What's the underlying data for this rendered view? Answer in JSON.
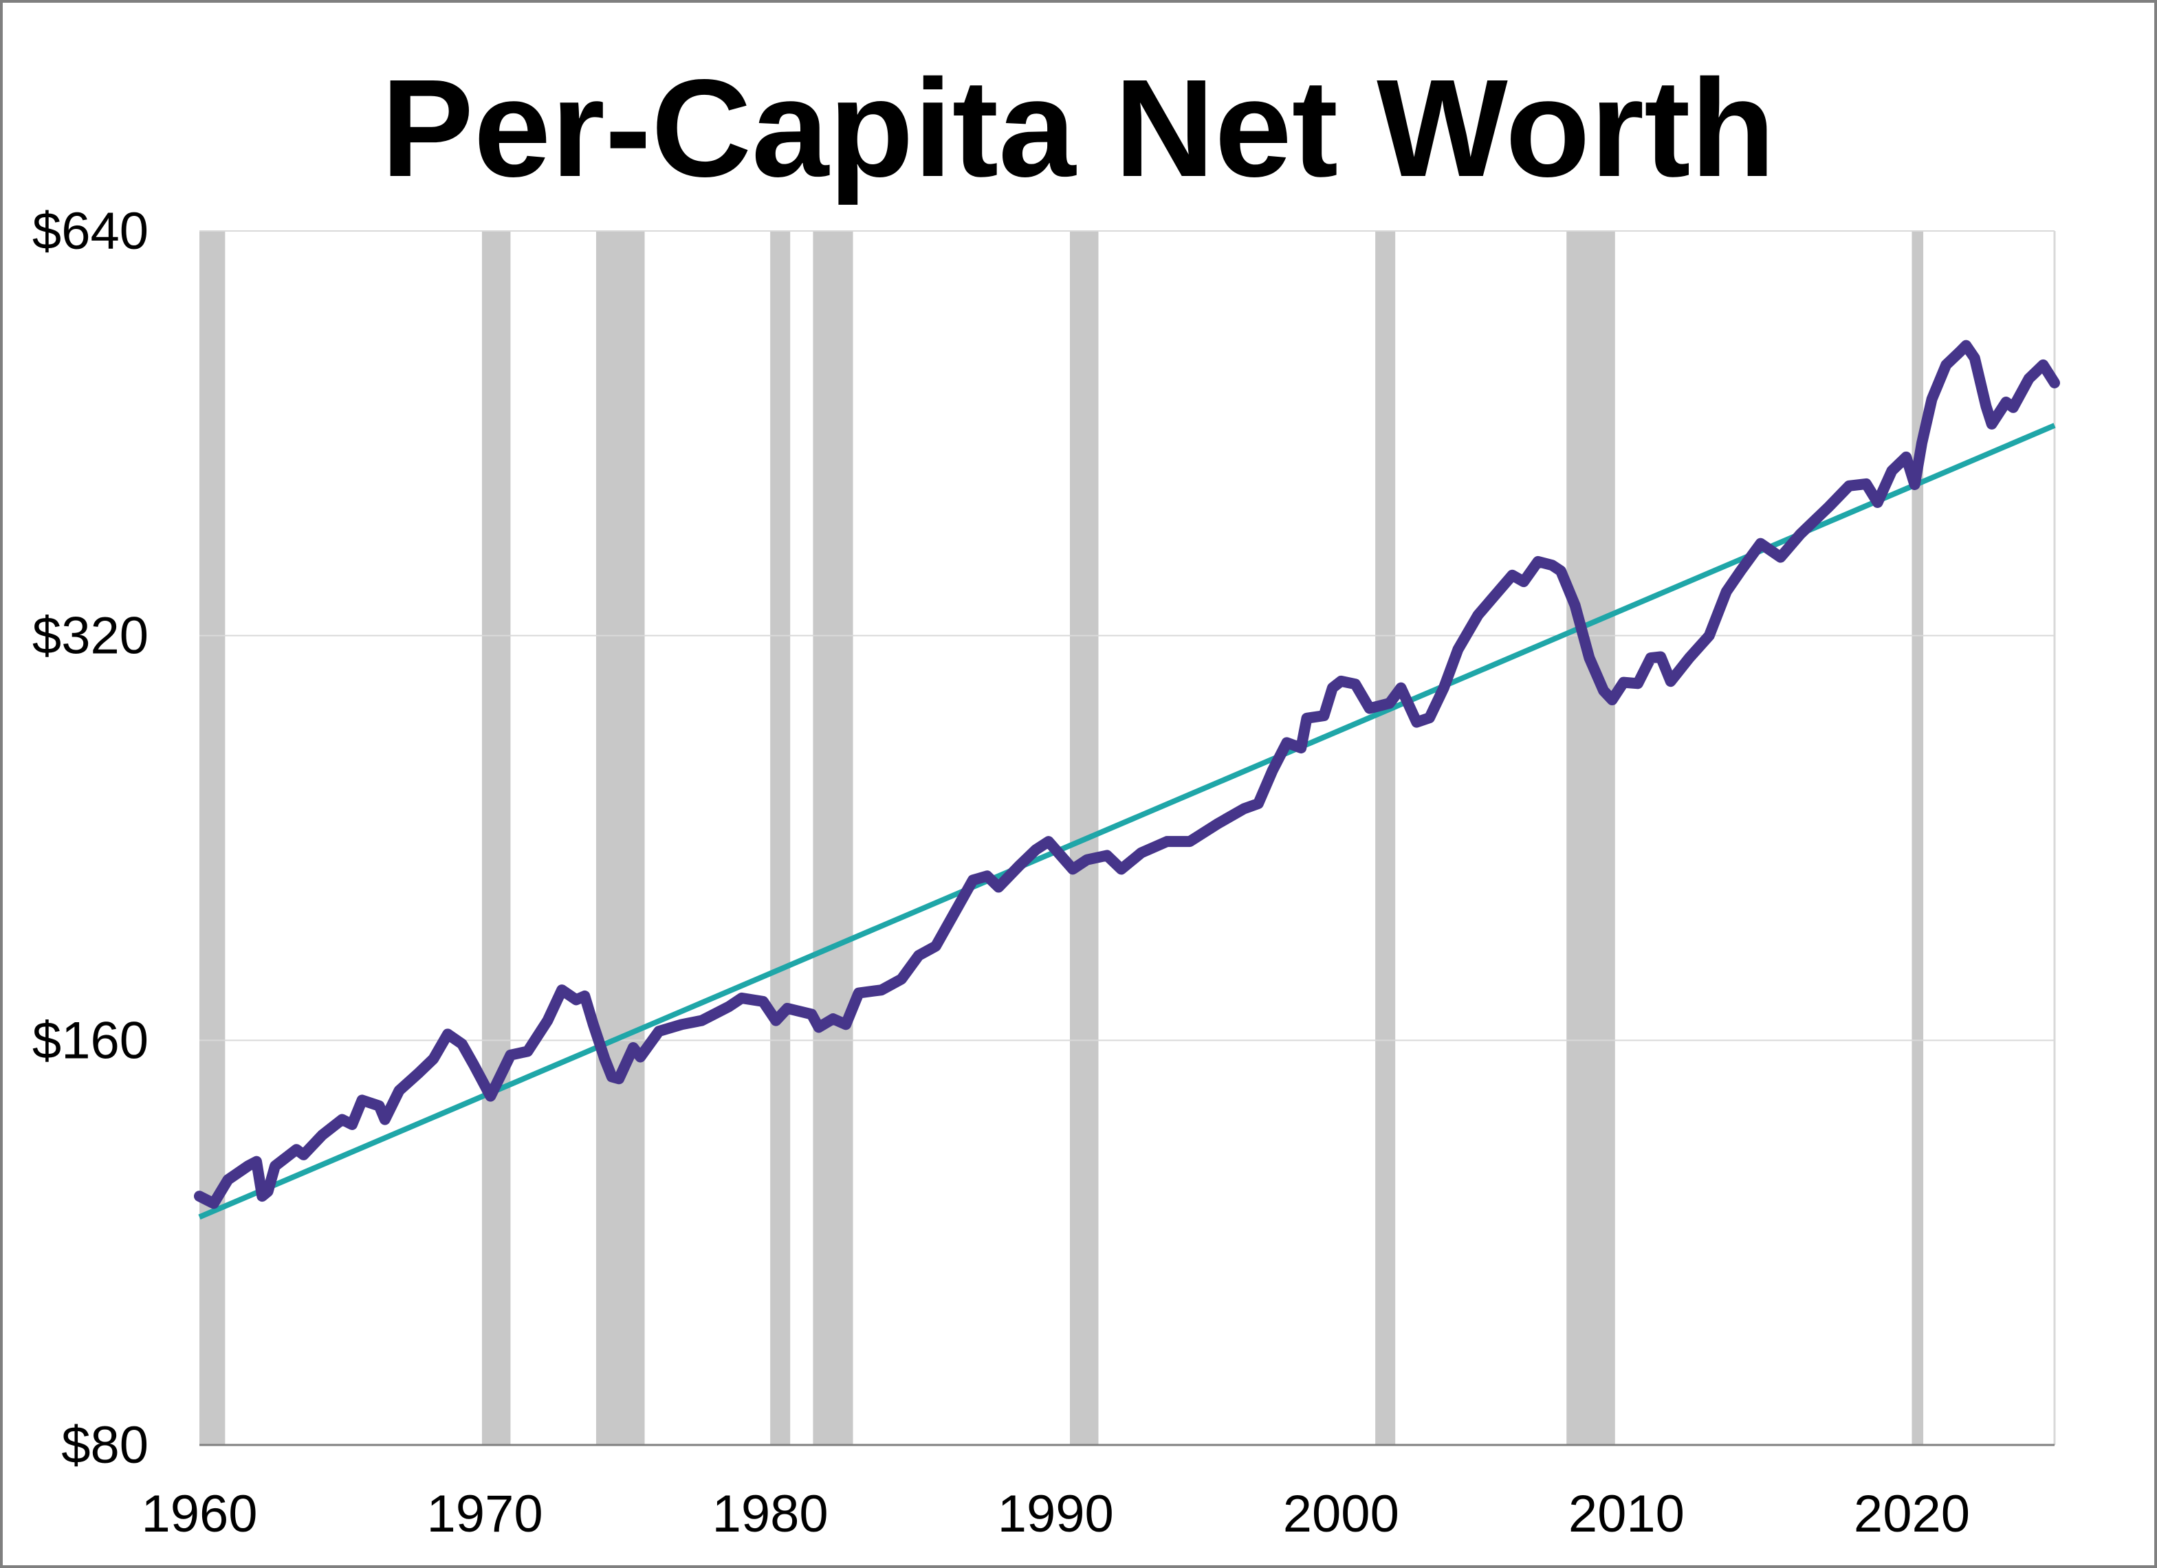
{
  "chart_data": {
    "type": "line",
    "title": "Per-Capita Net Worth",
    "xlabel": "",
    "ylabel": "",
    "xlim": [
      1960,
      2025
    ],
    "ylim": [
      80,
      640
    ],
    "y_scale": "log2",
    "grid": "horizontal",
    "x_ticks": [
      "1960",
      "1970",
      "1980",
      "1990",
      "2000",
      "2010",
      "2020"
    ],
    "x_tick_values": [
      1960,
      1970,
      1980,
      1990,
      2000,
      2010,
      2020
    ],
    "y_ticks": [
      "$80",
      "$160",
      "$320",
      "$640"
    ],
    "y_tick_values": [
      80,
      160,
      320,
      640
    ],
    "colors": {
      "series": "#46358A",
      "trend": "#1FA6A8",
      "recession": "#C8C8C8",
      "grid": "#D9D9D9",
      "frame": "#7F7F7F"
    },
    "recessions": [
      [
        1960.0,
        1960.9
      ],
      [
        1969.9,
        1970.9
      ],
      [
        1973.9,
        1975.6
      ],
      [
        1980.0,
        1980.7
      ],
      [
        1981.5,
        1982.9
      ],
      [
        1990.5,
        1991.5
      ],
      [
        2001.2,
        2001.9
      ],
      [
        2007.9,
        2009.6
      ],
      [
        2020.0,
        2020.4
      ]
    ],
    "trend": {
      "x": [
        1960,
        2025
      ],
      "y": [
        118.2,
        458.7
      ]
    },
    "series": [
      {
        "x": [
          1960.0,
          1960.5,
          1961.0,
          1961.7,
          1962.0,
          1962.2,
          1962.4,
          1962.65,
          1963.4,
          1963.65,
          1964.3,
          1965.0,
          1965.35,
          1965.7,
          1966.3,
          1966.5,
          1967.0,
          1967.7,
          1968.2,
          1968.7,
          1969.2,
          1969.6,
          1970.2,
          1970.9,
          1971.5,
          1972.2,
          1972.7,
          1973.2,
          1973.5,
          1973.8,
          1974.2,
          1974.45,
          1974.7,
          1975.2,
          1975.45,
          1976.1,
          1976.9,
          1977.6,
          1978.55,
          1979.0,
          1979.75,
          1980.2,
          1980.6,
          1981.45,
          1981.7,
          1982.2,
          1982.65,
          1983.1,
          1983.9,
          1984.6,
          1985.2,
          1985.8,
          1986.5,
          1987.1,
          1987.6,
          1988.0,
          1988.7,
          1989.3,
          1989.75,
          1990.6,
          1991.1,
          1991.8,
          1992.3,
          1993.0,
          1993.9,
          1994.7,
          1995.7,
          1996.6,
          1997.1,
          1997.6,
          1998.1,
          1998.6,
          1998.8,
          1999.4,
          1999.7,
          2000.0,
          2000.5,
          2001.0,
          2001.7,
          2002.1,
          2002.65,
          2003.1,
          2003.6,
          2004.1,
          2004.8,
          2005.5,
          2006.0,
          2006.4,
          2006.9,
          2007.4,
          2007.7,
          2008.2,
          2008.7,
          2009.2,
          2009.5,
          2009.9,
          2010.4,
          2010.85,
          2011.2,
          2011.55,
          2012.2,
          2012.9,
          2013.5,
          2014.0,
          2014.7,
          2015.4,
          2016.1,
          2017.1,
          2017.8,
          2018.4,
          2018.8,
          2019.3,
          2019.8,
          2020.1,
          2020.35,
          2020.7,
          2021.2,
          2021.7,
          2021.9,
          2022.2,
          2022.6,
          2022.8,
          2023.3,
          2023.55,
          2024.1,
          2024.6,
          2025.0
        ],
        "y": [
          122.5,
          121,
          126,
          129,
          130,
          122.5,
          123.5,
          129,
          132.7,
          131.5,
          136,
          139.7,
          138.5,
          144.4,
          143,
          139.7,
          146.8,
          151.4,
          155,
          161.7,
          159,
          153.6,
          145.4,
          156,
          157,
          165.5,
          174.4,
          171.5,
          172.6,
          164.4,
          155,
          150.3,
          149.8,
          158,
          155.5,
          162.5,
          164.4,
          165.5,
          169.5,
          172,
          171,
          165.5,
          169,
          167.3,
          163.6,
          166,
          164.4,
          173.5,
          174.4,
          177.7,
          185,
          188,
          199.8,
          210.5,
          212,
          208,
          215.5,
          221.7,
          224.9,
          214.5,
          218,
          219.6,
          214.5,
          220.6,
          224.9,
          224.9,
          232,
          237.9,
          240,
          254,
          266.4,
          264,
          277.8,
          279,
          292.6,
          296,
          294.5,
          282.5,
          285,
          292.6,
          275.9,
          278,
          292.6,
          312.6,
          331.5,
          345,
          354.9,
          351,
          363.3,
          361,
          357.5,
          337,
          308,
          291.2,
          286.7,
          295.4,
          294.8,
          308,
          308.6,
          295.9,
          308,
          320,
          345,
          357.5,
          374.7,
          366,
          380.9,
          399.2,
          413.6,
          415,
          402,
          424.4,
          434.5,
          414.5,
          445,
          479.7,
          508.8,
          520.8,
          526,
          514.8,
          474,
          459.8,
          477.4,
          473,
          496.9,
          508.8,
          493.4
        ]
      }
    ]
  }
}
